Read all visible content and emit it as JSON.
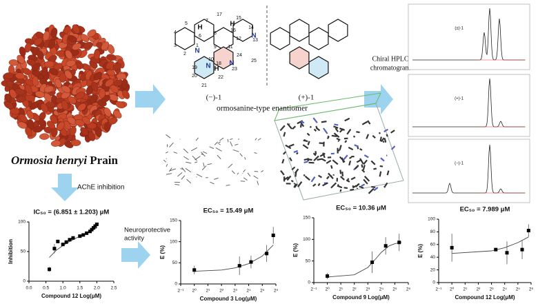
{
  "labels": {
    "species": "Ormosia henryi",
    "authority": "Prain",
    "ache": "AChE inhibition",
    "neuro_1": "Neuroprotective",
    "neuro_2": "activity",
    "minus": "(−)-1",
    "plus": "(+)-1",
    "enantiomer_type": "ormosanine-type enantiomer",
    "hplc_1": "Chiral HPLC",
    "hplc_2": "chromatogram",
    "hplc_panels": [
      "(±)-1",
      "(+)-1",
      "(−)-1"
    ]
  },
  "atoms": [
    "5",
    "4",
    "3",
    "2",
    "1",
    "6",
    "7",
    "17",
    "15",
    "16",
    "14",
    "8",
    "12",
    "13",
    "11",
    "9",
    "10",
    "24",
    "25",
    "19",
    "18",
    "23",
    "20",
    "21",
    "22",
    "H",
    "H",
    "H",
    "N",
    "N",
    "N",
    "N"
  ],
  "chart_data": [
    {
      "type": "scatter",
      "title": "IC₅₀ = (6.851 ± 1.203) μM",
      "x_label": "Compound 12  Log(μM)",
      "y_label": "Inhibition",
      "xlim": [
        0,
        2.5
      ],
      "xticks": [
        {
          "value": 0,
          "label": "0.0"
        },
        0.5,
        {
          "value": 1,
          "label": "1.0"
        },
        1.5,
        {
          "value": 2,
          "label": "2.0"
        },
        2.5
      ],
      "ylim": [
        0,
        100
      ],
      "yticks": [
        0,
        50,
        100
      ],
      "x": [
        0.6,
        0.75,
        0.85,
        1.0,
        1.1,
        1.2,
        1.3,
        1.5,
        1.6,
        1.7,
        1.8,
        1.85,
        1.9,
        1.95,
        2.0
      ],
      "values": [
        20,
        55,
        67,
        62,
        66,
        70,
        73,
        76,
        78,
        81,
        84,
        87,
        90,
        93,
        96
      ],
      "errors": [
        4,
        8,
        3,
        2,
        2,
        2,
        2,
        2,
        2,
        2,
        2,
        2,
        2,
        2,
        2
      ],
      "fit": {
        "x": [
          0.6,
          0.8,
          1.0,
          1.2,
          1.4,
          1.6,
          1.8,
          2.0
        ],
        "values": [
          40,
          52,
          60,
          67,
          73,
          78,
          84,
          90
        ]
      }
    },
    {
      "type": "scatter",
      "title": "EC₅₀ = 15.49 μM",
      "x_label": "Compound 3   Log(μM)",
      "y_label": "E (%)",
      "xscale": "log2",
      "xlim": [
        0.5,
        64
      ],
      "xticks": [
        {
          "value": 0.5,
          "label": "2⁻¹"
        },
        {
          "value": 1,
          "label": "2⁰"
        },
        {
          "value": 2,
          "label": "2¹"
        },
        {
          "value": 4,
          "label": "2²"
        },
        {
          "value": 8,
          "label": "2³"
        },
        {
          "value": 16,
          "label": "2⁴"
        },
        {
          "value": 32,
          "label": "2⁵"
        },
        {
          "value": 64,
          "label": "2⁶"
        }
      ],
      "ylim": [
        0,
        150
      ],
      "yticks": [
        0,
        50,
        100,
        150
      ],
      "x": [
        1,
        10,
        18,
        40,
        56
      ],
      "values": [
        33,
        43,
        52,
        72,
        115
      ],
      "errors": [
        10,
        22,
        15,
        20,
        20
      ],
      "fit": {
        "x": [
          1,
          4,
          8,
          16,
          32,
          56
        ],
        "values": [
          30,
          33,
          38,
          48,
          66,
          92
        ]
      }
    },
    {
      "type": "scatter",
      "title": "EC₅₀ = 10.36 μM",
      "x_label": "Compound 9   Log(μM)",
      "y_label": "E (%)",
      "xscale": "log2",
      "xlim": [
        0.5,
        64
      ],
      "xticks": [
        {
          "value": 0.5,
          "label": "2⁻¹"
        },
        {
          "value": 1,
          "label": "2⁰"
        },
        {
          "value": 2,
          "label": "2¹"
        },
        {
          "value": 4,
          "label": "2²"
        },
        {
          "value": 8,
          "label": "2³"
        },
        {
          "value": 16,
          "label": "2⁴"
        },
        {
          "value": 32,
          "label": "2⁵"
        },
        {
          "value": 64,
          "label": "2⁶"
        }
      ],
      "ylim": [
        0,
        150
      ],
      "yticks": [
        0,
        50,
        100,
        150
      ],
      "x": [
        1,
        10,
        20,
        40
      ],
      "values": [
        15,
        47,
        85,
        93
      ],
      "errors": [
        7,
        25,
        20,
        20
      ],
      "fit": {
        "x": [
          1,
          4,
          8,
          12,
          16,
          24,
          32,
          45
        ],
        "values": [
          13,
          18,
          35,
          55,
          70,
          85,
          90,
          93
        ]
      }
    },
    {
      "type": "scatter",
      "title": "EC₅₀ = 7.989 μM",
      "x_label": "Compound 12  Log(μM)",
      "y_label": "E (%)",
      "xscale": "log2",
      "xlim": [
        0.5,
        64
      ],
      "xticks": [
        {
          "value": 0.5,
          "label": "2⁻¹"
        },
        {
          "value": 1,
          "label": "2⁰"
        },
        {
          "value": 2,
          "label": "2¹"
        },
        {
          "value": 4,
          "label": "2²"
        },
        {
          "value": 8,
          "label": "2³"
        },
        {
          "value": 16,
          "label": "2⁴"
        },
        {
          "value": 32,
          "label": "2⁵"
        },
        {
          "value": 64,
          "label": "2⁶"
        }
      ],
      "ylim": [
        0,
        100
      ],
      "yticks": [
        0,
        20,
        40,
        60,
        80,
        100
      ],
      "x": [
        1,
        10,
        18,
        40,
        56
      ],
      "values": [
        55,
        52,
        47,
        52,
        82
      ],
      "errors": [
        22,
        2,
        18,
        15,
        10
      ],
      "fit": {
        "x": [
          1,
          8,
          16,
          32,
          56
        ],
        "values": [
          46,
          50,
          55,
          63,
          72
        ]
      }
    }
  ]
}
